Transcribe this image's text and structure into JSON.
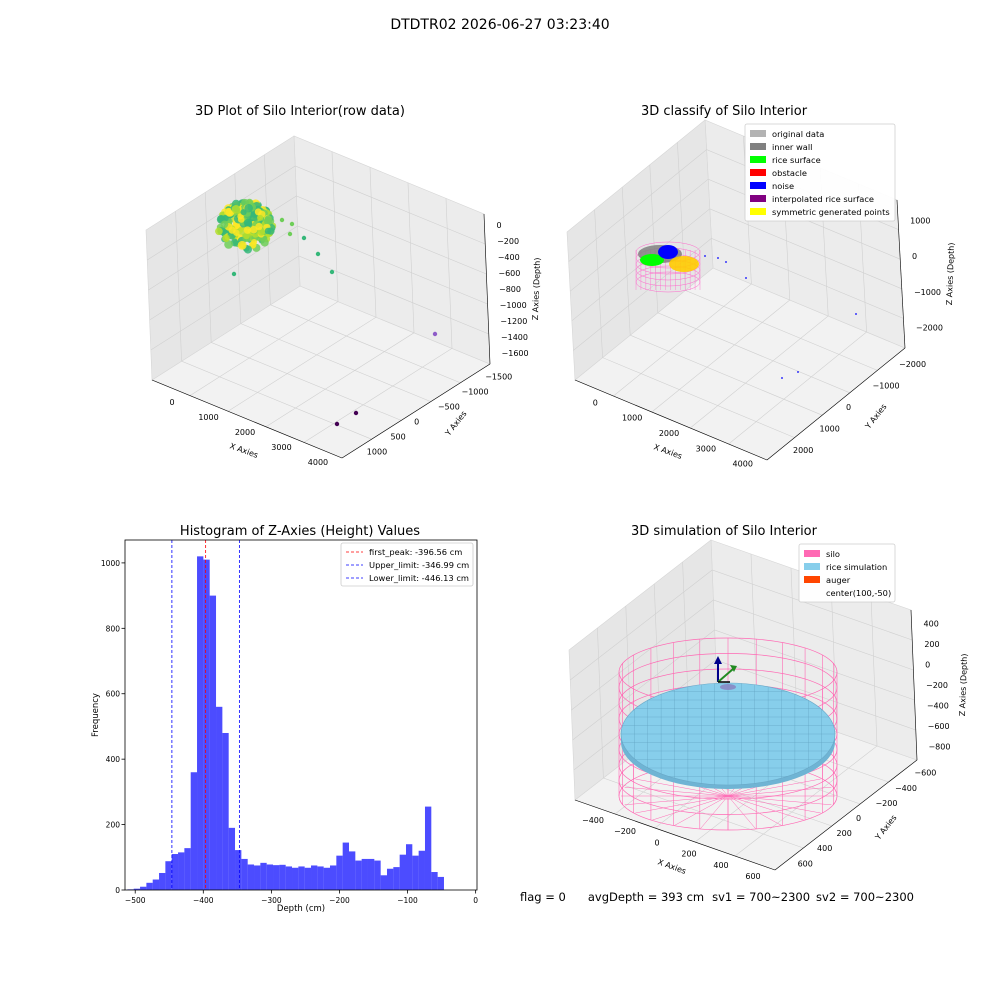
{
  "suptitle": "DTDTR02 2026-06-27 03:23:40",
  "footer": {
    "flag": "flag = 0",
    "avg_depth": "avgDepth = 393 cm",
    "sv1": "sv1 = 700~2300",
    "sv2": "sv2 = 700~2300"
  },
  "chart_data": [
    {
      "type": "scatter3d",
      "title": "3D Plot of Silo Interior(row data)",
      "xlabel": "X Axies",
      "ylabel": "Y Axies",
      "zlabel": "Z Axies (Depth)",
      "x_ticks": [
        "0",
        "1000",
        "2000",
        "3000",
        "4000"
      ],
      "y_ticks": [
        "1000",
        "500",
        "0",
        "−500",
        "−1000",
        "−1500"
      ],
      "z_ticks": [
        "0",
        "−200",
        "−400",
        "−600",
        "−800",
        "−1000",
        "−1200",
        "−1400",
        "−1600"
      ],
      "colormap": "viridis",
      "grid": true
    },
    {
      "type": "scatter3d",
      "title": "3D classify of Silo Interior",
      "xlabel": "X Axies",
      "ylabel": "Y Axies",
      "zlabel": "Z Axies (Depth)",
      "x_ticks": [
        "0",
        "1000",
        "2000",
        "3000",
        "4000"
      ],
      "y_ticks": [
        "2000",
        "1000",
        "0",
        "−1000",
        "−2000"
      ],
      "z_ticks": [
        "1000",
        "0",
        "−1000",
        "−2000"
      ],
      "legend_position": "top-right",
      "legend": [
        {
          "label": "original data",
          "color": "#b3b3b3"
        },
        {
          "label": "inner wall",
          "color": "#808080"
        },
        {
          "label": "rice surface",
          "color": "#00ff00"
        },
        {
          "label": "obstacle",
          "color": "#ff0000"
        },
        {
          "label": "noise",
          "color": "#0000ff"
        },
        {
          "label": "interpolated rice surface",
          "color": "#800080"
        },
        {
          "label": "symmetric generated points",
          "color": "#ffff00"
        }
      ],
      "grid": true
    },
    {
      "type": "bar",
      "title": "Histogram of Z-Axies (Height) Values",
      "xlabel": "Depth (cm)",
      "ylabel": "Frequency",
      "xlim": [
        -515,
        2
      ],
      "ylim": [
        0,
        1070
      ],
      "x_ticks": [
        -500,
        -400,
        -300,
        -200,
        -100,
        0
      ],
      "y_ticks": [
        0,
        200,
        400,
        600,
        800,
        1000
      ],
      "bar_color": "#0000ff",
      "bin_width": 9.3,
      "bin_start": -511.5,
      "values": [
        2,
        4,
        10,
        22,
        32,
        52,
        88,
        110,
        115,
        128,
        360,
        1020,
        1010,
        900,
        560,
        480,
        190,
        122,
        95,
        78,
        75,
        83,
        78,
        76,
        77,
        72,
        68,
        72,
        68,
        75,
        72,
        68,
        75,
        105,
        145,
        118,
        90,
        95,
        95,
        90,
        45,
        65,
        70,
        108,
        140,
        105,
        120,
        255,
        55,
        40
      ],
      "vlines": [
        {
          "label": "first_peak: -396.56 cm",
          "x": -396.56,
          "color": "#ff0000",
          "style": "dashed"
        },
        {
          "label": "Upper_limit: -346.99 cm",
          "x": -346.99,
          "color": "#0000ff",
          "style": "dashed"
        },
        {
          "label": "Lower_limit: -446.13 cm",
          "x": -446.13,
          "color": "#0000ff",
          "style": "dashed"
        }
      ],
      "legend_position": "top-right"
    },
    {
      "type": "surface3d",
      "title": "3D simulation of Silo Interior",
      "xlabel": "X Axies",
      "ylabel": "Y Axies",
      "zlabel": "Z Axies (Depth)",
      "x_ticks": [
        "−400",
        "−200",
        "0",
        "200",
        "400",
        "600"
      ],
      "y_ticks": [
        "600",
        "400",
        "200",
        "0",
        "−200",
        "−400",
        "−600"
      ],
      "z_ticks": [
        "400",
        "200",
        "0",
        "−200",
        "−400",
        "−600",
        "−800"
      ],
      "legend_position": "top-right",
      "legend": [
        {
          "label": "silo",
          "color": "#ff69b4"
        },
        {
          "label": "rice simulation",
          "color": "#87ceeb"
        },
        {
          "label": "auger",
          "color": "#ff4500"
        },
        {
          "label": "center(100,-50)",
          "color": "none"
        }
      ]
    }
  ]
}
